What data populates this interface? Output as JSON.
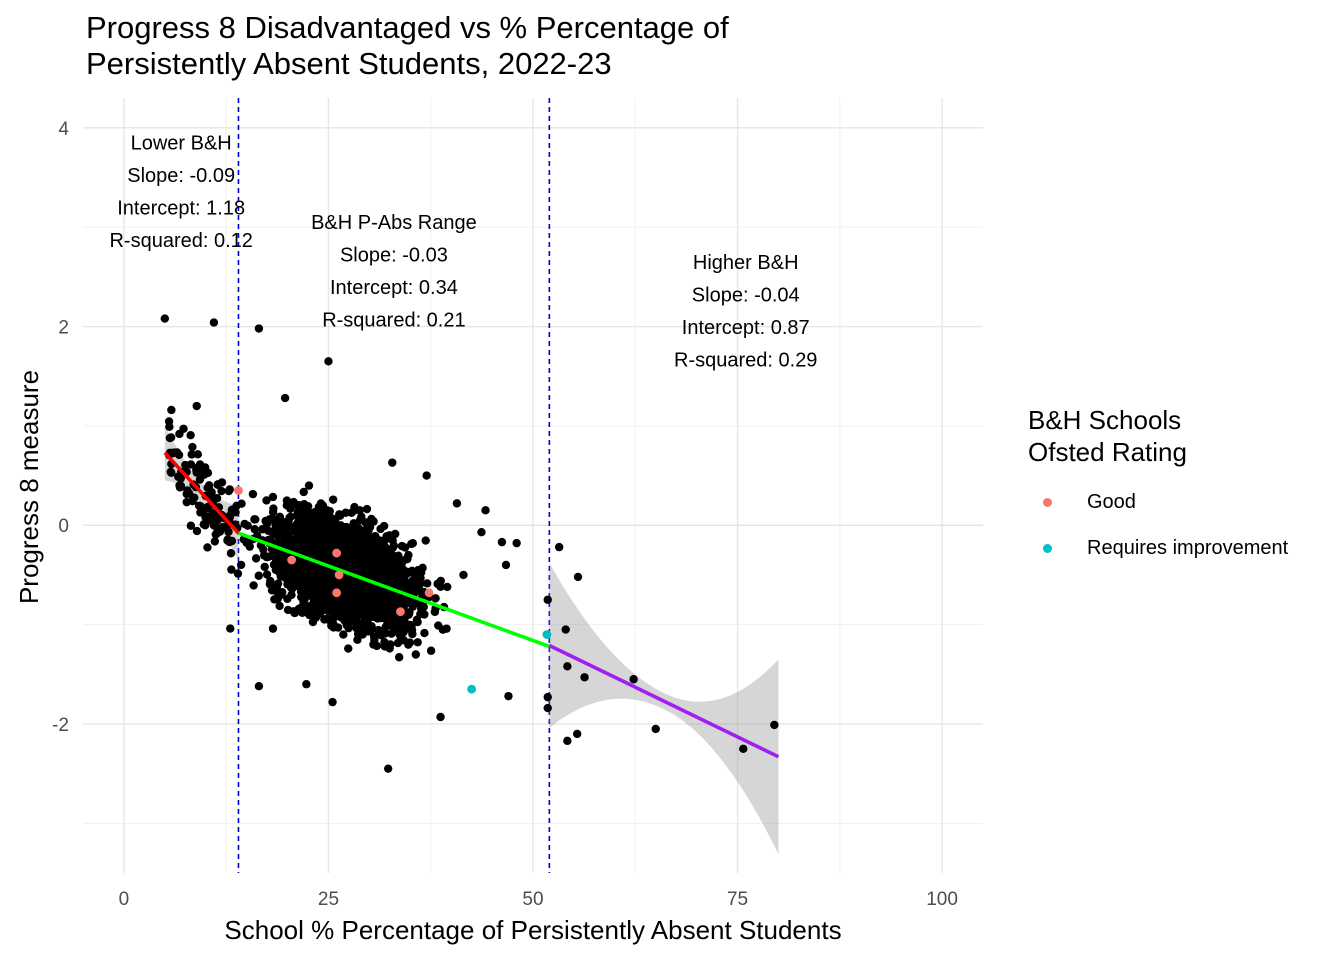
{
  "chart_data": {
    "type": "scatter",
    "title": "Progress 8 Disadvantaged vs % Percentage of Persistently Absent Students, 2022-23",
    "title_lines": [
      "Progress 8 Disadvantaged vs % Percentage of",
      "Persistently Absent Students, 2022-23"
    ],
    "xlabel": "School % Percentage of Persistently Absent Students",
    "ylabel": "Progress 8 measure",
    "xlim": [
      -5,
      105
    ],
    "ylim": [
      -3.5,
      4.3
    ],
    "x_ticks": [
      0,
      25,
      50,
      75,
      100
    ],
    "y_ticks": [
      -2,
      0,
      2,
      4
    ],
    "grid": true,
    "vlines": [
      14,
      52
    ],
    "vline_color": "#0000cc",
    "legend": {
      "title_lines": [
        "B&H Schools",
        "Ofsted Rating"
      ],
      "position": "right",
      "entries": [
        {
          "label": "Good",
          "color": "#f8766d"
        },
        {
          "label": "Requires improvement",
          "color": "#00bfc4"
        }
      ]
    },
    "segments": [
      {
        "name": "Lower B&H",
        "color": "#ff0000",
        "x_range": [
          5,
          14
        ],
        "slope": -0.09,
        "intercept": 1.18,
        "r_squared": 0.12
      },
      {
        "name": "B&H P-Abs Range",
        "color": "#00ff00",
        "x_range": [
          14,
          52
        ],
        "slope": -0.03,
        "intercept": 0.34,
        "r_squared": 0.21
      },
      {
        "name": "Higher B&H",
        "color": "#a020f0",
        "x_range": [
          52,
          80
        ],
        "slope": -0.04,
        "intercept": 0.87,
        "r_squared": 0.29
      }
    ],
    "annotations": [
      {
        "lines": [
          "Lower B&H",
          "Slope: -0.09",
          "Intercept: 1.18",
          "R-squared: 0.12"
        ],
        "x": 7,
        "y": 3.85
      },
      {
        "lines": [
          "B&H P-Abs Range",
          "Slope: -0.03",
          "Intercept: 0.34",
          "R-squared: 0.21"
        ],
        "x": 33,
        "y": 3.05
      },
      {
        "lines": [
          "Higher B&H",
          "Slope: -0.04",
          "Intercept: 0.87",
          "R-squared: 0.29"
        ],
        "x": 76,
        "y": 2.65
      }
    ],
    "highlighted_points": [
      {
        "x": 14,
        "y": 0.35,
        "rating": "Good"
      },
      {
        "x": 20.5,
        "y": -0.35,
        "rating": "Good"
      },
      {
        "x": 26,
        "y": -0.28,
        "rating": "Good"
      },
      {
        "x": 26.3,
        "y": -0.5,
        "rating": "Good"
      },
      {
        "x": 26,
        "y": -0.68,
        "rating": "Good"
      },
      {
        "x": 33.8,
        "y": -0.87,
        "rating": "Good"
      },
      {
        "x": 37.3,
        "y": -0.68,
        "rating": "Good"
      },
      {
        "x": 42.5,
        "y": -1.65,
        "rating": "Requires improvement"
      },
      {
        "x": 51.7,
        "y": -1.1,
        "rating": "Requires improvement"
      }
    ],
    "outlier_points": [
      [
        5,
        2.08
      ],
      [
        11,
        2.04
      ],
      [
        16.5,
        1.98
      ],
      [
        25,
        1.65
      ],
      [
        19.7,
        1.28
      ],
      [
        5.8,
        1.16
      ],
      [
        8.9,
        1.2
      ],
      [
        32.8,
        0.63
      ],
      [
        37,
        0.5
      ],
      [
        40.7,
        0.22
      ],
      [
        44.2,
        0.15
      ],
      [
        43.7,
        -0.07
      ],
      [
        46.2,
        -0.17
      ],
      [
        48,
        -0.18
      ],
      [
        53.2,
        -0.22
      ],
      [
        55.5,
        -0.52
      ],
      [
        54,
        -1.05
      ],
      [
        54.2,
        -1.42
      ],
      [
        56.3,
        -1.53
      ],
      [
        62.3,
        -1.55
      ],
      [
        65,
        -2.05
      ],
      [
        75.7,
        -2.25
      ],
      [
        79.5,
        -2.01
      ],
      [
        55.4,
        -2.1
      ],
      [
        54.2,
        -2.17
      ],
      [
        32.3,
        -2.45
      ],
      [
        25.5,
        -1.78
      ],
      [
        38.7,
        -1.93
      ],
      [
        47,
        -1.72
      ],
      [
        51.8,
        -1.73
      ],
      [
        51.8,
        -1.84
      ],
      [
        51.8,
        -0.75
      ],
      [
        13,
        -1.04
      ],
      [
        16.5,
        -1.62
      ],
      [
        22.3,
        -1.6
      ],
      [
        41.5,
        -0.5
      ],
      [
        46.7,
        -0.4
      ]
    ]
  }
}
